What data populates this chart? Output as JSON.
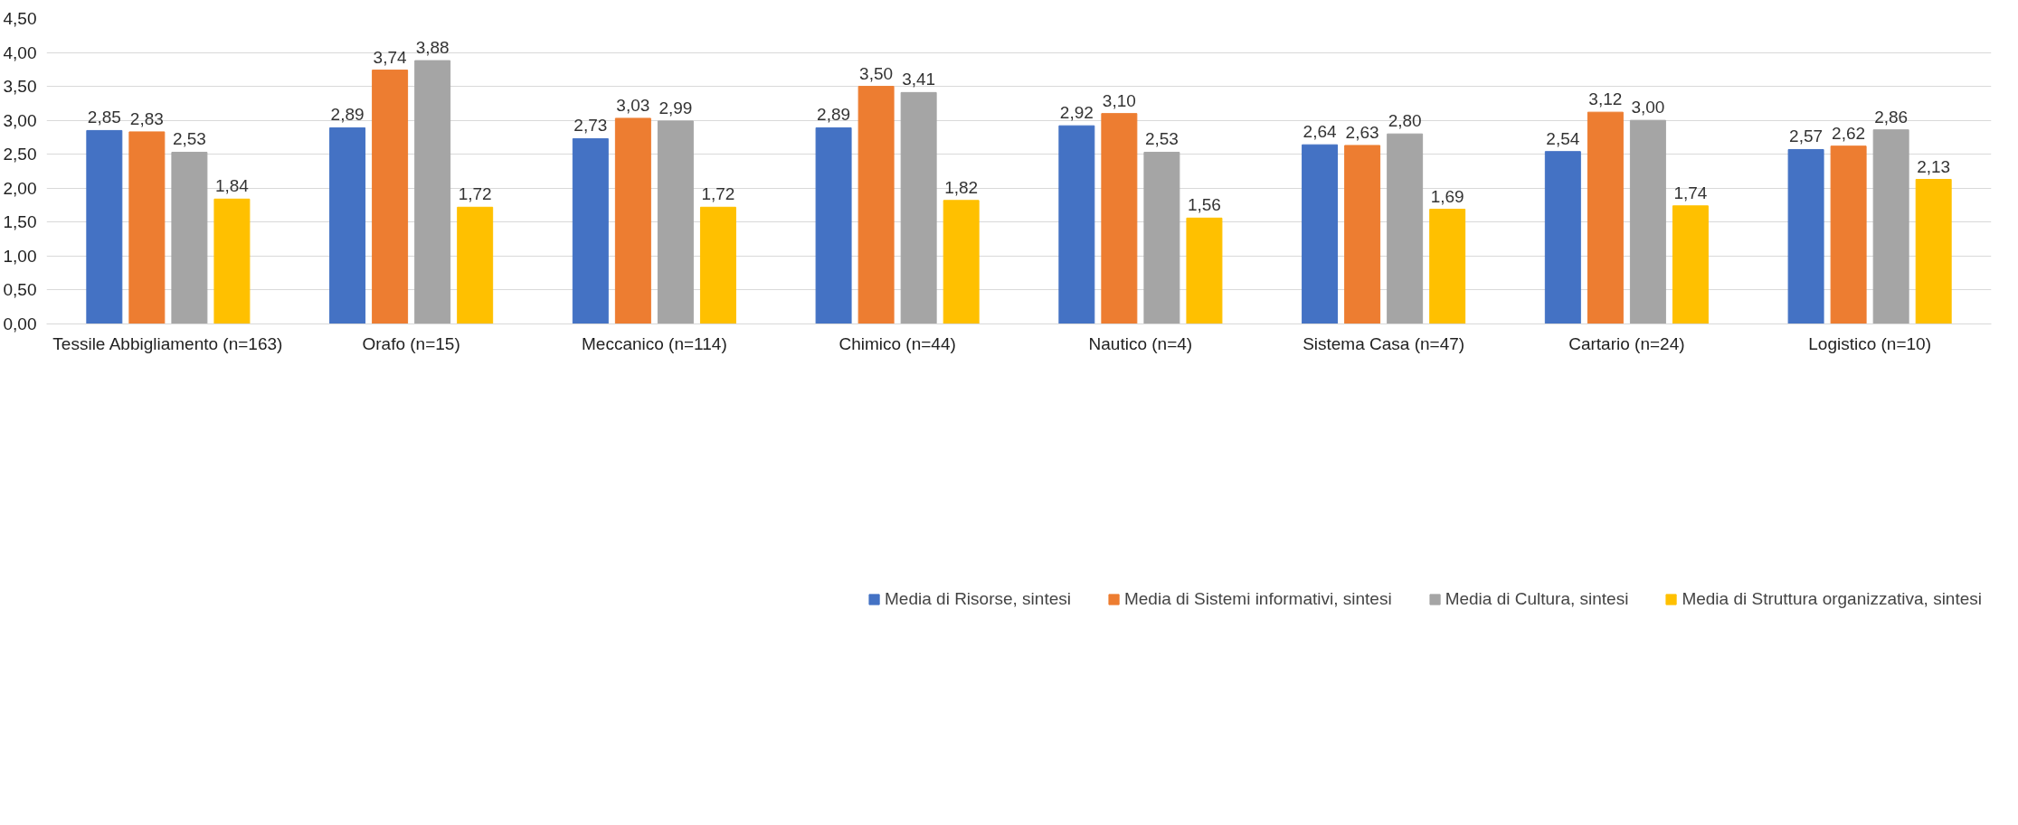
{
  "chart_data": {
    "type": "bar",
    "categories": [
      "Tessile Abbigliamento (n=163)",
      "Orafo (n=15)",
      "Meccanico (n=114)",
      "Chimico (n=44)",
      "Nautico (n=4)",
      "Sistema Casa (n=47)",
      "Cartario (n=24)",
      "Logistico (n=10)"
    ],
    "series": [
      {
        "name": "Media di Risorse, sintesi",
        "color": "#4472c4",
        "values": [
          2.85,
          2.89,
          2.73,
          2.89,
          2.92,
          2.64,
          2.54,
          2.57
        ],
        "value_labels": [
          "2,85",
          "2,89",
          "2,73",
          "2,89",
          "2,92",
          "2,64",
          "2,54",
          "2,57"
        ]
      },
      {
        "name": "Media di Sistemi informativi, sintesi",
        "color": "#ed7d31",
        "values": [
          2.83,
          3.74,
          3.03,
          3.5,
          3.1,
          2.63,
          3.12,
          2.62
        ],
        "value_labels": [
          "2,83",
          "3,74",
          "3,03",
          "3,50",
          "3,10",
          "2,63",
          "3,12",
          "2,62"
        ]
      },
      {
        "name": "Media di Cultura, sintesi",
        "color": "#a5a5a5",
        "values": [
          2.53,
          3.88,
          2.99,
          3.41,
          2.53,
          2.8,
          3.0,
          2.86
        ],
        "value_labels": [
          "2,53",
          "3,88",
          "2,99",
          "3,41",
          "2,53",
          "2,80",
          "3,00",
          "2,86"
        ]
      },
      {
        "name": "Media di Struttura organizzativa, sintesi",
        "color": "#ffc000",
        "values": [
          1.84,
          1.72,
          1.72,
          1.82,
          1.56,
          1.69,
          1.74,
          2.13
        ],
        "value_labels": [
          "1,84",
          "1,72",
          "1,72",
          "1,82",
          "1,56",
          "1,69",
          "1,74",
          "2,13"
        ]
      }
    ],
    "ylim": [
      0,
      4.5
    ],
    "yticks": [
      {
        "value": 0,
        "label": "0,00"
      },
      {
        "value": 0.5,
        "label": "0,50"
      },
      {
        "value": 1,
        "label": "1,00"
      },
      {
        "value": 1.5,
        "label": "1,50"
      },
      {
        "value": 2,
        "label": "2,00"
      },
      {
        "value": 2.5,
        "label": "2,50"
      },
      {
        "value": 3,
        "label": "3,00"
      },
      {
        "value": 3.5,
        "label": "3,50"
      },
      {
        "value": 4,
        "label": "4,00"
      },
      {
        "value": 4.5,
        "label": "4,50"
      }
    ],
    "grid": "y",
    "legend": "bottom"
  }
}
